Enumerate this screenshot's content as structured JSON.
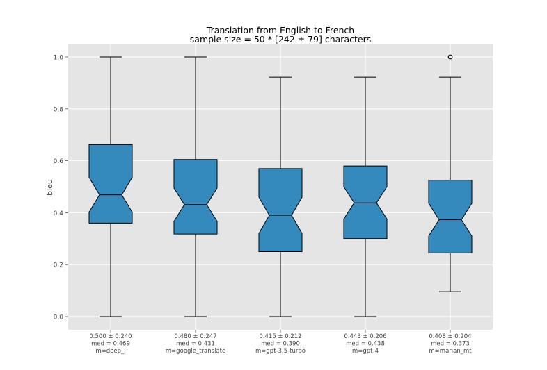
{
  "chart_data": {
    "type": "box",
    "title": "Translation from English to French",
    "subtitle": "sample size = 50 * [242 ± 79] characters",
    "xlabel": "",
    "ylabel": "bleu",
    "ylim": [
      -0.05,
      1.05
    ],
    "yticks": [
      "0.0",
      "0.2",
      "0.4",
      "0.6",
      "0.8",
      "1.0"
    ],
    "notched": true,
    "grid": true,
    "colors": {
      "box": "#348ABD",
      "background": "#E5E5E5",
      "grid": "#FFFFFF",
      "line": "#000000"
    },
    "boxes": [
      {
        "name": "m=deep_l",
        "label_lines": [
          "0.500 ± 0.240",
          "med = 0.469",
          "m=deep_l"
        ],
        "mean": 0.5,
        "std": 0.24,
        "median": 0.469,
        "q1": 0.36,
        "q3": 0.662,
        "whisker_low": 0.0,
        "whisker_high": 1.0,
        "notch_low": 0.402,
        "notch_high": 0.536,
        "outliers": []
      },
      {
        "name": "m=google_translate",
        "label_lines": [
          "0.480 ± 0.247",
          "med = 0.431",
          "m=google_translate"
        ],
        "mean": 0.48,
        "std": 0.247,
        "median": 0.431,
        "q1": 0.318,
        "q3": 0.605,
        "whisker_low": 0.0,
        "whisker_high": 1.0,
        "notch_low": 0.367,
        "notch_high": 0.495,
        "outliers": []
      },
      {
        "name": "m=gpt-3.5-turbo",
        "label_lines": [
          "0.415 ± 0.212",
          "med = 0.390",
          "m=gpt-3.5-turbo"
        ],
        "mean": 0.415,
        "std": 0.212,
        "median": 0.39,
        "q1": 0.25,
        "q3": 0.57,
        "whisker_low": 0.0,
        "whisker_high": 0.922,
        "notch_low": 0.32,
        "notch_high": 0.46,
        "outliers": []
      },
      {
        "name": "m=gpt-4",
        "label_lines": [
          "0.443 ± 0.206",
          "med = 0.438",
          "m=gpt-4"
        ],
        "mean": 0.443,
        "std": 0.206,
        "median": 0.438,
        "q1": 0.3,
        "q3": 0.58,
        "whisker_low": 0.0,
        "whisker_high": 0.922,
        "notch_low": 0.376,
        "notch_high": 0.5,
        "outliers": []
      },
      {
        "name": "m=marian_mt",
        "label_lines": [
          "0.408 ± 0.204",
          "med = 0.373",
          "m=marian_mt"
        ],
        "mean": 0.408,
        "std": 0.204,
        "median": 0.373,
        "q1": 0.245,
        "q3": 0.525,
        "whisker_low": 0.096,
        "whisker_high": 0.922,
        "notch_low": 0.31,
        "notch_high": 0.436,
        "outliers": [
          1.0
        ]
      }
    ]
  }
}
